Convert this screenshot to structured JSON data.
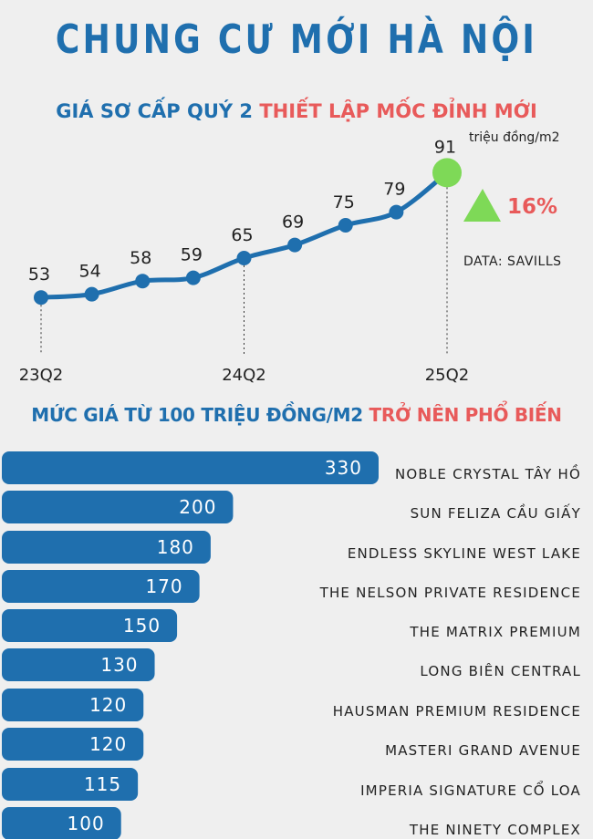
{
  "header": {
    "title": "CHUNG CƯ MỚI HÀ NỘI",
    "line_title_a": "GIÁ SƠ CẤP QUÝ 2",
    "line_title_b": "THIẾT LẬP MỐC ĐỈNH MỚI",
    "bar_title_a": "MỨC GIÁ TỪ 100 TRIỆU ĐỒNG/M2",
    "bar_title_b": "TRỞ NÊN PHỔ BIẾN"
  },
  "colors": {
    "primary": "#1f6fae",
    "accent_red": "#e85a5a",
    "green": "#7ed957",
    "background": "#efefef"
  },
  "chart_data": [
    {
      "type": "line",
      "values": [
        53,
        54,
        58,
        59,
        65,
        69,
        75,
        79,
        91
      ],
      "x_tick_labels": [
        "23Q2",
        "24Q2",
        "25Q2"
      ],
      "x_tick_indices": [
        0,
        4,
        8
      ],
      "unit": "triệu đồng/m2",
      "change_label": "16%",
      "source": "DATA: SAVILLS",
      "ylim": [
        40,
        95
      ]
    },
    {
      "type": "bar",
      "orientation": "horizontal",
      "categories": [
        "NOBLE CRYSTAL TÂY HỒ",
        "SUN FELIZA CẦU GIẤY",
        "ENDLESS SKYLINE WEST LAKE",
        "THE NELSON PRIVATE RESIDENCE",
        "THE MATRIX PREMIUM",
        "LONG BIÊN CENTRAL",
        "HAUSMAN PREMIUM RESIDENCE",
        "MASTERI GRAND AVENUE",
        "IMPERIA SIGNATURE CỔ LOA",
        "THE NINETY COMPLEX"
      ],
      "values": [
        330,
        200,
        180,
        170,
        150,
        130,
        120,
        120,
        115,
        100
      ],
      "xlim": [
        0,
        330
      ]
    }
  ]
}
